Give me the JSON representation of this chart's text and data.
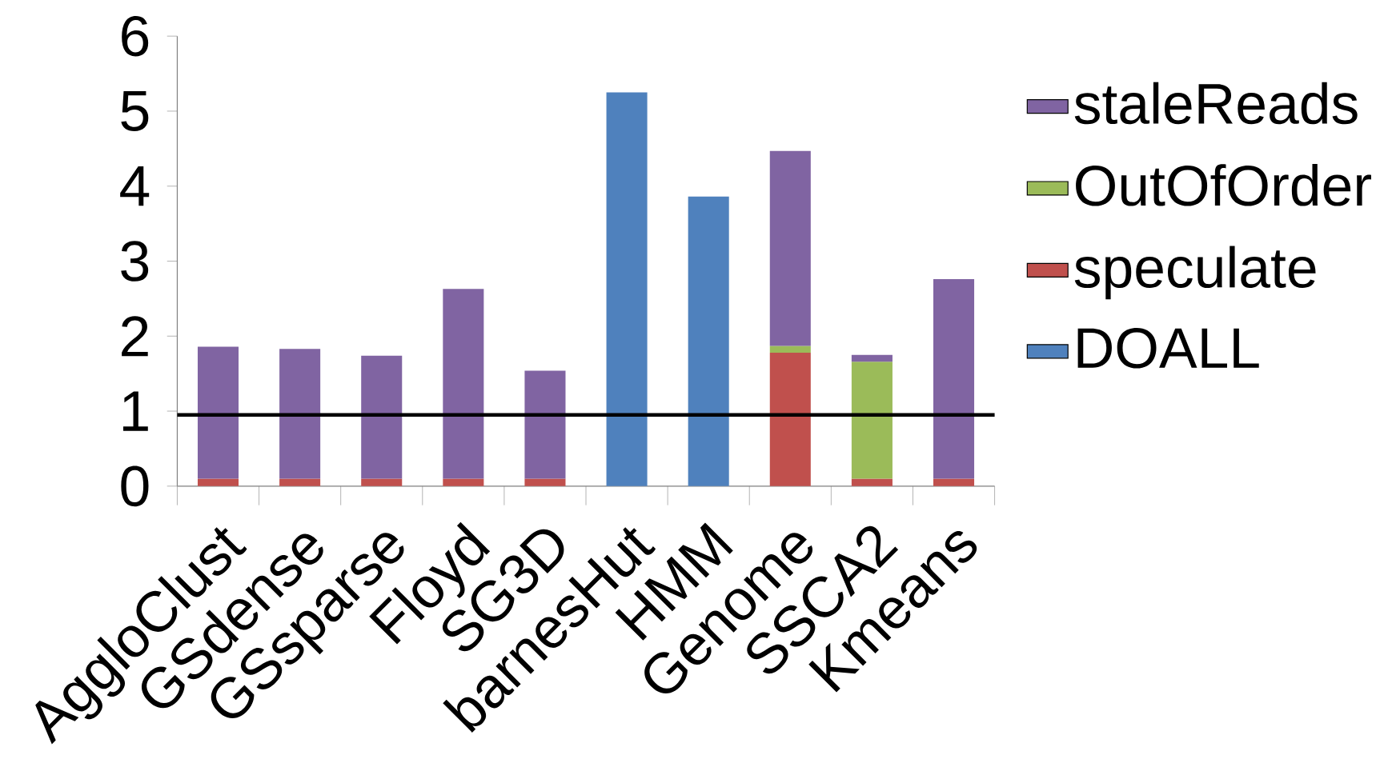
{
  "chart_data": {
    "type": "bar",
    "stacked": true,
    "categories": [
      "AggloClust",
      "GSdense",
      "GSsparse",
      "Floyd",
      "SG3D",
      "barnesHut",
      "HMM",
      "Genome",
      "SSCA2",
      "Kmeans"
    ],
    "series": [
      {
        "name": "DOALL",
        "color": "#4f81bd",
        "values": [
          null,
          null,
          null,
          null,
          null,
          5.25,
          3.86,
          null,
          null,
          null
        ]
      },
      {
        "name": "speculate",
        "color": "#c0504d",
        "values": [
          0.1,
          0.1,
          0.1,
          0.1,
          0.1,
          null,
          null,
          1.78,
          0.1,
          0.1
        ]
      },
      {
        "name": "OutOfOrder",
        "color": "#9bbb59",
        "values": [
          null,
          null,
          null,
          null,
          null,
          null,
          null,
          0.09,
          1.56,
          null
        ]
      },
      {
        "name": "staleReads",
        "color": "#8064a2",
        "values": [
          1.76,
          1.73,
          1.64,
          2.53,
          1.44,
          null,
          null,
          2.6,
          0.09,
          2.66
        ]
      }
    ],
    "ylim": [
      0,
      6
    ],
    "yticks": [
      0,
      1,
      2,
      3,
      4,
      5,
      6
    ],
    "ref_lines": [
      {
        "axis": "y",
        "value": 0.95,
        "color": "#000000"
      }
    ],
    "legend": "right",
    "grid": false
  }
}
